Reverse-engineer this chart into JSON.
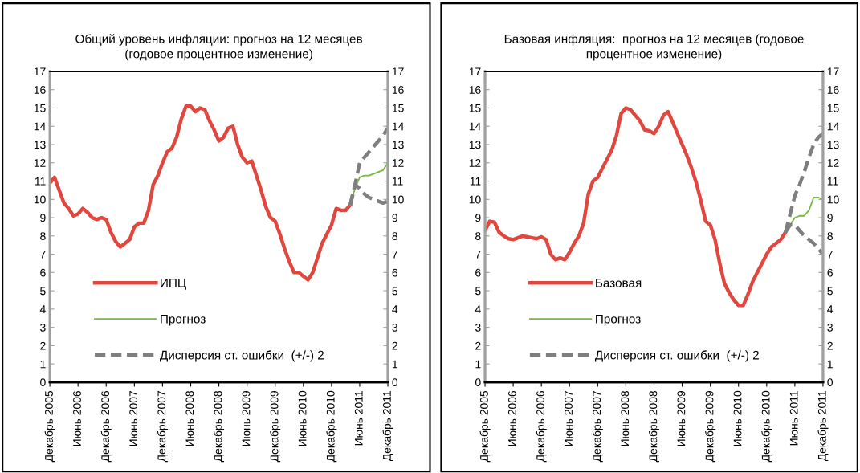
{
  "chart_data": [
    {
      "type": "line",
      "title": "Общий уровень инфляции: прогноз на 12 месяцев\n(годовое процентное изменение)",
      "categories": [
        "Декабрь 2005",
        null,
        null,
        null,
        null,
        null,
        "Июнь 2006",
        null,
        null,
        null,
        null,
        null,
        "Декабрь 2006",
        null,
        null,
        null,
        null,
        null,
        "Июнь 2007",
        null,
        null,
        null,
        null,
        null,
        "Декабрь 2007",
        null,
        null,
        null,
        null,
        null,
        "Июнь 2008",
        null,
        null,
        null,
        null,
        null,
        "Декабрь 2008",
        null,
        null,
        null,
        null,
        null,
        "Июнь 2009",
        null,
        null,
        null,
        null,
        null,
        "Декабрь 2009",
        null,
        null,
        null,
        null,
        null,
        "Июнь 2010",
        null,
        null,
        null,
        null,
        null,
        "Декабрь 2010",
        null,
        null,
        null,
        null,
        null,
        "Июнь 2011",
        null,
        null,
        null,
        null,
        null,
        "Декабрь 2011"
      ],
      "ylim": [
        0,
        17
      ],
      "yticks": [
        0,
        1,
        2,
        3,
        4,
        5,
        6,
        7,
        8,
        9,
        10,
        11,
        12,
        13,
        14,
        15,
        16,
        17
      ],
      "y2lim": [
        0,
        17
      ],
      "y2ticks": [
        0,
        1,
        2,
        3,
        4,
        5,
        6,
        7,
        8,
        9,
        10,
        11,
        12,
        13,
        14,
        15,
        16,
        17
      ],
      "legend": "bottom left",
      "series": [
        {
          "name": "ИПЦ",
          "color": "#e0483f",
          "line_style": "solid",
          "values": [
            10.9,
            11.2,
            10.5,
            9.8,
            9.5,
            9.1,
            9.2,
            9.5,
            9.3,
            9.0,
            8.9,
            9.0,
            8.9,
            8.2,
            7.7,
            7.4,
            7.6,
            7.8,
            8.5,
            8.7,
            8.7,
            9.4,
            10.8,
            11.3,
            12.0,
            12.6,
            12.8,
            13.4,
            14.4,
            15.1,
            15.1,
            14.8,
            15.0,
            14.9,
            14.3,
            13.8,
            13.2,
            13.4,
            13.9,
            14.0,
            13.0,
            12.3,
            12.0,
            12.1,
            11.3,
            10.5,
            9.6,
            9.0,
            8.8,
            8.1,
            7.3,
            6.6,
            6.0,
            6.0,
            5.8,
            5.6,
            6.0,
            6.8,
            7.6,
            8.1,
            8.6,
            9.5,
            9.4,
            9.4,
            9.7,
            null,
            null,
            null,
            null,
            null,
            null,
            null,
            null
          ]
        },
        {
          "name": "Прогноз",
          "color": "#77b843",
          "line_style": "solid",
          "values": [
            null,
            null,
            null,
            null,
            null,
            null,
            null,
            null,
            null,
            null,
            null,
            null,
            null,
            null,
            null,
            null,
            null,
            null,
            null,
            null,
            null,
            null,
            null,
            null,
            null,
            null,
            null,
            null,
            null,
            null,
            null,
            null,
            null,
            null,
            null,
            null,
            null,
            null,
            null,
            null,
            null,
            null,
            null,
            null,
            null,
            null,
            null,
            null,
            null,
            null,
            null,
            null,
            null,
            null,
            null,
            null,
            null,
            null,
            null,
            null,
            null,
            null,
            null,
            null,
            9.7,
            10.6,
            11.2,
            11.3,
            11.3,
            11.4,
            11.5,
            11.6,
            12.0
          ]
        },
        {
          "name": "Дисперсия ст. ошибки  (+/-) 2",
          "color": "#7f7f7f",
          "line_style": "dashed",
          "values": [
            null,
            null,
            null,
            null,
            null,
            null,
            null,
            null,
            null,
            null,
            null,
            null,
            null,
            null,
            null,
            null,
            null,
            null,
            null,
            null,
            null,
            null,
            null,
            null,
            null,
            null,
            null,
            null,
            null,
            null,
            null,
            null,
            null,
            null,
            null,
            null,
            null,
            null,
            null,
            null,
            null,
            null,
            null,
            null,
            null,
            null,
            null,
            null,
            null,
            null,
            null,
            null,
            null,
            null,
            null,
            null,
            null,
            null,
            null,
            null,
            null,
            null,
            null,
            null,
            9.7,
            10.8,
            12.0,
            12.3,
            12.6,
            12.9,
            13.2,
            13.5,
            13.9
          ]
        },
        {
          "color": "#7f7f7f",
          "line_style": "dashed",
          "values": [
            null,
            null,
            null,
            null,
            null,
            null,
            null,
            null,
            null,
            null,
            null,
            null,
            null,
            null,
            null,
            null,
            null,
            null,
            null,
            null,
            null,
            null,
            null,
            null,
            null,
            null,
            null,
            null,
            null,
            null,
            null,
            null,
            null,
            null,
            null,
            null,
            null,
            null,
            null,
            null,
            null,
            null,
            null,
            null,
            null,
            null,
            null,
            null,
            null,
            null,
            null,
            null,
            null,
            null,
            null,
            null,
            null,
            null,
            null,
            null,
            null,
            null,
            null,
            null,
            9.7,
            10.8,
            10.6,
            10.3,
            10.1,
            10.0,
            9.9,
            9.8,
            9.9
          ]
        }
      ]
    },
    {
      "type": "line",
      "title": "Базовая инфляция:  прогноз на 12 месяцев (годовое\nпроцентное изменение)",
      "categories": [
        "Декабрь 2005",
        null,
        null,
        null,
        null,
        null,
        "Июнь 2006",
        null,
        null,
        null,
        null,
        null,
        "Декабрь 2006",
        null,
        null,
        null,
        null,
        null,
        "Июнь 2007",
        null,
        null,
        null,
        null,
        null,
        "Декабрь 2007",
        null,
        null,
        null,
        null,
        null,
        "Июнь 2008",
        null,
        null,
        null,
        null,
        null,
        "Декабрь 2008",
        null,
        null,
        null,
        null,
        null,
        "Июнь 2009",
        null,
        null,
        null,
        null,
        null,
        "Декабрь 2009",
        null,
        null,
        null,
        null,
        null,
        "Июнь 2010",
        null,
        null,
        null,
        null,
        null,
        "Декабрь 2010",
        null,
        null,
        null,
        null,
        null,
        "Июнь 2011",
        null,
        null,
        null,
        null,
        null,
        "Декабрь 2011"
      ],
      "ylim": [
        0,
        17
      ],
      "yticks": [
        0,
        1,
        2,
        3,
        4,
        5,
        6,
        7,
        8,
        9,
        10,
        11,
        12,
        13,
        14,
        15,
        16,
        17
      ],
      "y2lim": [
        0,
        17
      ],
      "y2ticks": [
        0,
        1,
        2,
        3,
        4,
        5,
        6,
        7,
        8,
        9,
        10,
        11,
        12,
        13,
        14,
        15,
        16,
        17
      ],
      "legend": "bottom left",
      "series": [
        {
          "name": "Базовая",
          "color": "#e0483f",
          "line_style": "solid",
          "values": [
            8.3,
            8.8,
            8.75,
            8.2,
            8.0,
            7.85,
            7.8,
            7.9,
            8.0,
            7.95,
            7.9,
            7.85,
            7.95,
            7.8,
            7.0,
            6.7,
            6.8,
            6.7,
            7.1,
            7.6,
            8.0,
            8.7,
            10.3,
            11.0,
            11.2,
            11.7,
            12.2,
            12.7,
            13.5,
            14.7,
            15.0,
            14.9,
            14.6,
            14.3,
            13.8,
            13.75,
            13.6,
            14.0,
            14.6,
            14.8,
            14.2,
            13.6,
            13.0,
            12.4,
            11.7,
            10.9,
            9.9,
            8.8,
            8.6,
            7.8,
            6.5,
            5.4,
            4.9,
            4.5,
            4.2,
            4.2,
            4.8,
            5.5,
            6.0,
            6.5,
            7.0,
            7.4,
            7.6,
            7.8,
            8.2,
            null,
            null,
            null,
            null,
            null,
            null,
            null,
            null
          ]
        },
        {
          "name": "Прогноз",
          "color": "#77b843",
          "line_style": "solid",
          "values": [
            null,
            null,
            null,
            null,
            null,
            null,
            null,
            null,
            null,
            null,
            null,
            null,
            null,
            null,
            null,
            null,
            null,
            null,
            null,
            null,
            null,
            null,
            null,
            null,
            null,
            null,
            null,
            null,
            null,
            null,
            null,
            null,
            null,
            null,
            null,
            null,
            null,
            null,
            null,
            null,
            null,
            null,
            null,
            null,
            null,
            null,
            null,
            null,
            null,
            null,
            null,
            null,
            null,
            null,
            null,
            null,
            null,
            null,
            null,
            null,
            null,
            null,
            null,
            null,
            8.2,
            8.6,
            9.0,
            9.1,
            9.1,
            9.4,
            10.1,
            10.1,
            10.0
          ]
        },
        {
          "name": "Дисперсия ст. ошибки  (+/-) 2",
          "color": "#7f7f7f",
          "line_style": "dashed",
          "values": [
            null,
            null,
            null,
            null,
            null,
            null,
            null,
            null,
            null,
            null,
            null,
            null,
            null,
            null,
            null,
            null,
            null,
            null,
            null,
            null,
            null,
            null,
            null,
            null,
            null,
            null,
            null,
            null,
            null,
            null,
            null,
            null,
            null,
            null,
            null,
            null,
            null,
            null,
            null,
            null,
            null,
            null,
            null,
            null,
            null,
            null,
            null,
            null,
            null,
            null,
            null,
            null,
            null,
            null,
            null,
            null,
            null,
            null,
            null,
            null,
            null,
            null,
            null,
            null,
            8.2,
            9.2,
            10.2,
            10.8,
            11.5,
            12.3,
            13.0,
            13.4,
            13.6
          ]
        },
        {
          "color": "#7f7f7f",
          "line_style": "dashed",
          "values": [
            null,
            null,
            null,
            null,
            null,
            null,
            null,
            null,
            null,
            null,
            null,
            null,
            null,
            null,
            null,
            null,
            null,
            null,
            null,
            null,
            null,
            null,
            null,
            null,
            null,
            null,
            null,
            null,
            null,
            null,
            null,
            null,
            null,
            null,
            null,
            null,
            null,
            null,
            null,
            null,
            null,
            null,
            null,
            null,
            null,
            null,
            null,
            null,
            null,
            null,
            null,
            null,
            null,
            null,
            null,
            null,
            null,
            null,
            null,
            null,
            null,
            null,
            null,
            null,
            8.2,
            8.6,
            8.6,
            8.3,
            8.0,
            7.8,
            7.6,
            7.3,
            7.0
          ]
        }
      ]
    }
  ]
}
